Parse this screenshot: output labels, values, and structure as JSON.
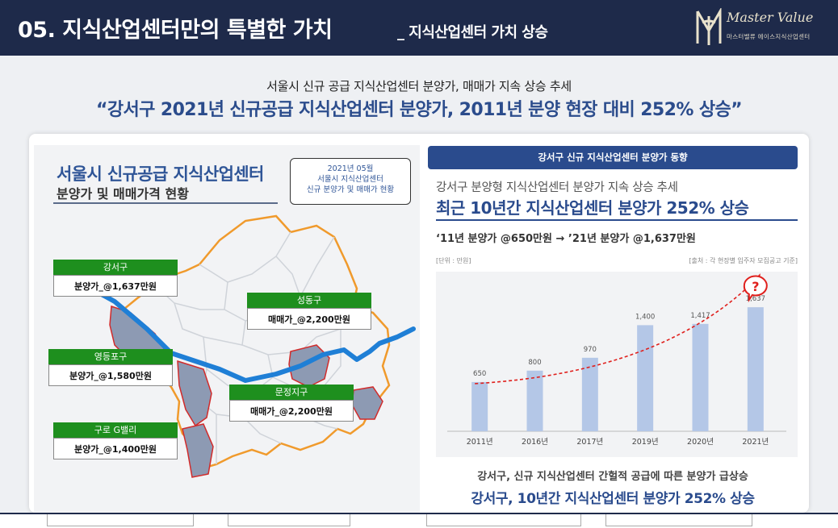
{
  "header": {
    "title": "05. 지식산업센터만의 특별한 가치",
    "subtitle": "_ 지식산업센터 가치 상승",
    "logo_script": "Master Value",
    "logo_sub": "마스터밸류 에이스지식산업센터"
  },
  "intro": {
    "line1": "서울시 신규 공급 지식산업센터 분양가, 매매가 지속 상승 추세",
    "line2": "“강서구 2021년 신규공급 지식산업센터 분양가, 2011년 분양 현장 대비 252% 상승”"
  },
  "left": {
    "title1": "서울시 신규공급 지식산업센터",
    "title2": "분양가 및 매매가격 현황",
    "datebox": [
      "2021년 05월",
      "서울시 지식산업센터",
      "신규 분양가 및 매매가 현황"
    ],
    "labels": [
      {
        "name": "강서구",
        "value": "분양가_@1,637만원"
      },
      {
        "name": "성동구",
        "value": "매매가_@2,200만원"
      },
      {
        "name": "영등포구",
        "value": "분양가_@1,580만원"
      },
      {
        "name": "문정지구",
        "value": "매매가_@2,200만원"
      },
      {
        "name": "구로 G밸리",
        "value": "분양가_@1,400만원"
      }
    ]
  },
  "right": {
    "header": "강서구 신규 지식산업센터 분양가 동향",
    "line1": "강서구 분양형 지식산업센터 분양가 지속 상승 추세",
    "line2": "최근 10년간 지식산업센터 분양가 252% 상승",
    "line3": "‘11년 분양가 @650만원 → ’21년 분양가 @1,637만원",
    "unit": "[단위 : 만원]",
    "source": "[출처 : 각 현장별 입주자 모집공고 기준]",
    "bottom1": "강서구, 신규 지식산업센터 간헐적 공급에 따른 분양가 급상승",
    "bottom2": "강서구, 10년간 지식산업센터 분양가 252% 상승"
  },
  "chart_data": {
    "type": "bar",
    "categories": [
      "2011년",
      "2016년",
      "2017년",
      "2019년",
      "2020년",
      "2021년"
    ],
    "values": [
      650,
      800,
      970,
      1400,
      1417,
      1637
    ],
    "value_labels": [
      "650",
      "800",
      "970",
      "1,400",
      "1,417",
      "1,637"
    ],
    "ylim": [
      0,
      2000
    ],
    "annotation": "?",
    "bar_color": "#b4c7e7",
    "trend_color": "#e0201d"
  }
}
